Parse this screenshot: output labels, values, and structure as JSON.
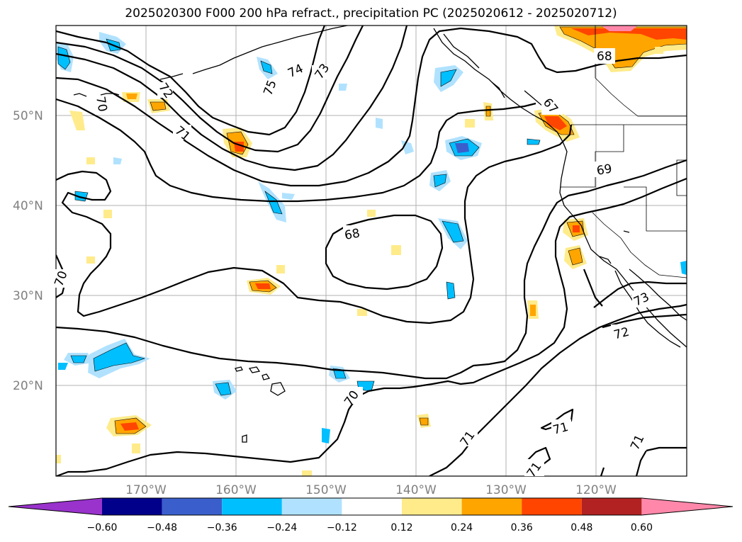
{
  "title": "2025020300 F000 200 hPa refract., precipitation PC (2025020612 - 2025020712)",
  "map": {
    "lat_labels": [
      "50°N",
      "40°N",
      "30°N",
      "20°N"
    ],
    "lon_labels": [
      "170°W",
      "160°W",
      "150°W",
      "140°W",
      "130°W",
      "120°W"
    ],
    "contour_labels": [
      "75",
      "74",
      "73",
      "72",
      "71",
      "70",
      "70",
      "68",
      "68",
      "67",
      "69",
      "73",
      "72",
      "71",
      "71",
      "71",
      "70",
      "71"
    ]
  },
  "colorbar": {
    "ticks": [
      "−0.60",
      "−0.48",
      "−0.36",
      "−0.24",
      "−0.12",
      "0.12",
      "0.24",
      "0.36",
      "0.48",
      "0.60"
    ],
    "colors": [
      "#9933cc",
      "#00008b",
      "#3a5fcd",
      "#00bfff",
      "#b0e2ff",
      "#ffffff",
      "#ffeb8a",
      "#ffa500",
      "#ff4500",
      "#b22222",
      "#ff88aa"
    ]
  }
}
